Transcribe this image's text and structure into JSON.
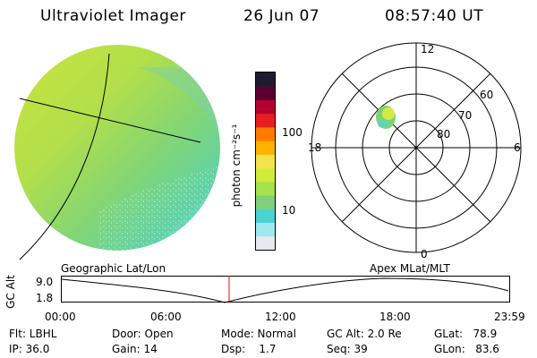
{
  "header": {
    "instrument": "Ultraviolet Imager",
    "date": "26 Jun 07",
    "time": "08:57:40 UT"
  },
  "colors": {
    "accent": "#ff0000",
    "grid": "#000000",
    "colorbar": [
      "#e8e8f0",
      "#9ee8ee",
      "#4bd2d2",
      "#7fd07a",
      "#a5e24c",
      "#d2ea3c",
      "#f2e44a",
      "#ffb000",
      "#ff7a00",
      "#e61e1e",
      "#b40030",
      "#5a0030",
      "#201a30"
    ]
  },
  "colorbar": {
    "unit_label": "photon cm⁻²s⁻¹",
    "ticks": [
      "100",
      "10"
    ]
  },
  "polar_plot": {
    "mlt_labels": {
      "top": "12",
      "bottom": "0",
      "left": "18",
      "right": "6"
    },
    "mlat_labels": [
      "60",
      "70",
      "80"
    ]
  },
  "timeline": {
    "left_title": "Geographic Lat/Lon",
    "right_title": "Apex  MLat/MLT",
    "y_axis_label": "GC Alt",
    "y_ticks": [
      "9.0",
      "1.8"
    ],
    "x_ticks": [
      "00:00",
      "06:00",
      "12:00",
      "18:00",
      "23:59"
    ],
    "current_time_fraction": 0.374
  },
  "status": {
    "flt": "Flt: LBHL",
    "ip": "IP: 36.0",
    "door": "Door: Open",
    "gain": "Gain: 14",
    "mode": "Mode: Normal",
    "dsp": "Dsp:    1.7",
    "gcalt": "GC Alt: 2.0 Re",
    "seq": "Seq: 39",
    "glat": "GLat:   78.9",
    "glon": "GLon:   83.6"
  }
}
